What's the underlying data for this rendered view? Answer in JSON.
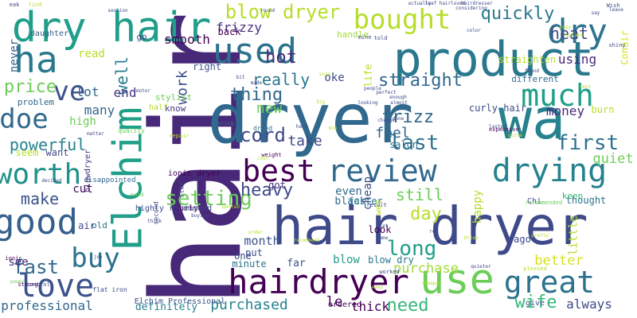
{
  "words": [
    {
      "text": "hair",
      "color": "#482878",
      "vertical": true
    },
    {
      "text": "dryer",
      "color": "#31688e"
    },
    {
      "text": "wa",
      "color": "#26828e"
    },
    {
      "text": "hair dryer",
      "color": "#3e4a89"
    },
    {
      "text": "product",
      "color": "#2a788e"
    },
    {
      "text": "use",
      "color": "#6ccd5a"
    },
    {
      "text": "dry hair",
      "color": "#1f9e89"
    },
    {
      "text": "Elchim",
      "color": "#1f9e89",
      "vertical": true
    },
    {
      "text": "hairdryer",
      "color": "#440154"
    },
    {
      "text": "great",
      "color": "#2c728e"
    },
    {
      "text": "best",
      "color": "#440154"
    },
    {
      "text": "review",
      "color": "#31688e"
    },
    {
      "text": "used",
      "color": "#2c728e"
    },
    {
      "text": "ha",
      "color": "#2a788e"
    },
    {
      "text": "good",
      "color": "#35608d"
    },
    {
      "text": "drying",
      "color": "#26828e"
    },
    {
      "text": "much",
      "color": "#1f9e89"
    },
    {
      "text": "dry",
      "color": "#2c728e"
    },
    {
      "text": "love",
      "color": "#3b528b"
    },
    {
      "text": "bought",
      "color": "#b5de2b"
    },
    {
      "text": "worth",
      "color": "#21918c"
    },
    {
      "text": "buy",
      "color": "#2c728e"
    },
    {
      "text": "doe",
      "color": "#31688e"
    },
    {
      "text": "ve",
      "color": "#3b528b"
    },
    {
      "text": "blow dryer",
      "color": "#b5de2b"
    },
    {
      "text": "first",
      "color": "#2c728e"
    },
    {
      "text": "last",
      "color": "#2c728e"
    },
    {
      "text": "long",
      "color": "#1f9e89"
    },
    {
      "text": "setting",
      "color": "#6ccd5a"
    },
    {
      "text": "cord",
      "color": "#3e4a89"
    },
    {
      "text": "heavy",
      "color": "#3e4a89"
    },
    {
      "text": "make",
      "color": "#3b528b"
    },
    {
      "text": "powerful",
      "color": "#26828e"
    },
    {
      "text": "fast",
      "color": "#31688e"
    },
    {
      "text": "need",
      "color": "#35b779"
    },
    {
      "text": "wife",
      "color": "#35b779"
    },
    {
      "text": "thing",
      "color": "#31688e"
    },
    {
      "text": "price",
      "color": "#6ccd5a"
    },
    {
      "text": "work",
      "color": "#3e4a89",
      "vertical": true
    },
    {
      "text": "well",
      "color": "#2a788e",
      "vertical": true
    },
    {
      "text": "really",
      "color": "#2a788e"
    },
    {
      "text": "hot",
      "color": "#482878"
    },
    {
      "text": "straight",
      "color": "#31688e"
    },
    {
      "text": "quickly",
      "color": "#2a788e"
    },
    {
      "text": "heat",
      "color": "#3e4a89"
    },
    {
      "text": "using",
      "color": "#482878"
    },
    {
      "text": "frizz",
      "color": "#31688e"
    },
    {
      "text": "still",
      "color": "#6ccd5a"
    },
    {
      "text": "day",
      "color": "#b5de2b"
    },
    {
      "text": "take",
      "color": "#3e4a89"
    },
    {
      "text": "feel",
      "color": "#31688e"
    },
    {
      "text": "money",
      "color": "#482878"
    },
    {
      "text": "quiet",
      "color": "#6ccd5a"
    },
    {
      "text": "purchased",
      "color": "#26828e"
    },
    {
      "text": "purchase",
      "color": "#a0da39"
    },
    {
      "text": "professional",
      "color": "#31688e"
    },
    {
      "text": "better",
      "color": "#d8e219"
    },
    {
      "text": "month",
      "color": "#3b528b"
    },
    {
      "text": "smooth",
      "color": "#440154"
    },
    {
      "text": "frizzy",
      "color": "#46327e"
    },
    {
      "text": "never",
      "color": "#35608d",
      "vertical": true
    },
    {
      "text": "new",
      "color": "#6ccd5a"
    },
    {
      "text": "oke",
      "color": "#3e4a89"
    },
    {
      "text": "end",
      "color": "#46327e"
    },
    {
      "text": "lot",
      "color": "#31688e"
    },
    {
      "text": "read",
      "color": "#b5de2b"
    },
    {
      "text": "many",
      "color": "#31688e"
    },
    {
      "text": "high",
      "color": "#6ccd5a"
    },
    {
      "text": "cut",
      "color": "#440154"
    },
    {
      "text": "see",
      "color": "#482878"
    },
    {
      "text": "le",
      "color": "#440154"
    },
    {
      "text": "thick",
      "color": "#440154"
    },
    {
      "text": "always",
      "color": "#3e4a89"
    },
    {
      "text": "definitely",
      "color": "#26828e"
    },
    {
      "text": "happy",
      "color": "#b5de2b",
      "vertical": true
    },
    {
      "text": "curly hair",
      "color": "#3e4a89"
    },
    {
      "text": "ionic dryer",
      "color": "#440154"
    },
    {
      "text": "stylist",
      "color": "#6ccd5a"
    },
    {
      "text": "even",
      "color": "#31688e"
    },
    {
      "text": "black",
      "color": "#31688e"
    },
    {
      "text": "salon",
      "color": "#2c728e"
    },
    {
      "text": "faster",
      "color": "#2a788e"
    },
    {
      "text": "blow",
      "color": "#1f9e89"
    },
    {
      "text": "blow dry",
      "color": "#2a788e"
    },
    {
      "text": "far",
      "color": "#3b528b"
    },
    {
      "text": "different",
      "color": "#31688e"
    },
    {
      "text": "straighten",
      "color": "#b5de2b"
    },
    {
      "text": "handle",
      "color": "#a0da39"
    },
    {
      "text": "right",
      "color": "#3b528b"
    },
    {
      "text": "back",
      "color": "#440154"
    },
    {
      "text": "go",
      "color": "#3e4a89"
    },
    {
      "text": "seem",
      "color": "#b5de2b"
    },
    {
      "text": "want",
      "color": "#3e4a89"
    },
    {
      "text": "problem",
      "color": "#31688e"
    },
    {
      "text": "daughter",
      "color": "#35608d"
    },
    {
      "text": "know",
      "color": "#46327e"
    },
    {
      "text": "half",
      "color": "#b5de2b"
    },
    {
      "text": "air",
      "color": "#3e4a89"
    },
    {
      "text": "old",
      "color": "#2c728e"
    },
    {
      "text": "look",
      "color": "#440154"
    },
    {
      "text": "thought",
      "color": "#2c728e"
    },
    {
      "text": "keep",
      "color": "#35b779"
    },
    {
      "text": "ago",
      "color": "#3e4a89"
    },
    {
      "text": "one",
      "color": "#3e4a89"
    },
    {
      "text": "put",
      "color": "#3e4a89"
    },
    {
      "text": "minute",
      "color": "#2c728e"
    },
    {
      "text": "got",
      "color": "#46327e"
    },
    {
      "text": "curly",
      "color": "#440154"
    },
    {
      "text": "little",
      "color": "#b5de2b",
      "vertical": true
    },
    {
      "text": "cheap",
      "color": "#3e4a89",
      "vertical": true
    },
    {
      "text": "burn",
      "color": "#b5de2b"
    },
    {
      "text": "Chi",
      "color": "#3e4a89"
    },
    {
      "text": "give",
      "color": "#3b528b"
    },
    {
      "text": "ordered",
      "color": "#440154"
    },
    {
      "text": "Conair",
      "color": "#d8e219",
      "vertical": true
    },
    {
      "text": "life",
      "color": "#b5de2b",
      "vertical": true
    },
    {
      "text": "wet",
      "color": "#b5de2b",
      "vertical": true
    },
    {
      "text": "highly recommend",
      "color": "#3e4a89"
    },
    {
      "text": "Elchim Professional",
      "color": "#3b528b"
    },
    {
      "text": "flat iron",
      "color": "#3e4a89"
    },
    {
      "text": "blowdryer",
      "color": "#46327e",
      "vertical": true
    },
    {
      "text": "star",
      "color": "#3e4a89",
      "vertical": true
    },
    {
      "text": "second",
      "color": "#3e4a89",
      "vertical": true
    },
    {
      "text": "disappointed",
      "color": "#31688e"
    },
    {
      "text": "quality",
      "color": "#6ccd5a"
    },
    {
      "text": "repair",
      "color": "#b5de2b"
    },
    {
      "text": "amazing",
      "color": "#2c728e"
    },
    {
      "text": "weight",
      "color": "#440154"
    },
    {
      "text": "dried",
      "color": "#2c728e"
    },
    {
      "text": "result",
      "color": "#3e4a89"
    },
    {
      "text": "said",
      "color": "#6ccd5a"
    },
    {
      "text": "worked",
      "color": "#3b528b"
    },
    {
      "text": "recommended",
      "color": "#6ccd5a"
    },
    {
      "text": "expensive",
      "color": "#440154"
    },
    {
      "text": "power",
      "color": "#6ccd5a"
    },
    {
      "text": "strong",
      "color": "#440154"
    },
    {
      "text": "control",
      "color": "#3e4a89"
    },
    {
      "text": "ionic",
      "color": "#440154"
    },
    {
      "text": "job",
      "color": "#3e4a89"
    },
    {
      "text": "decided",
      "color": "#3e4a89"
    },
    {
      "text": "think",
      "color": "#3e4a89"
    },
    {
      "text": "buying",
      "color": "#3e4a89"
    },
    {
      "text": "wanted",
      "color": "#b5de2b"
    },
    {
      "text": "easy",
      "color": "#b5de2b"
    },
    {
      "text": "cheaper",
      "color": "#b5de2b"
    },
    {
      "text": "quieter",
      "color": "#3e4a89"
    },
    {
      "text": "pleased",
      "color": "#b5de2b"
    },
    {
      "text": "Wish",
      "color": "#3e4a89"
    },
    {
      "text": "shiny",
      "color": "#3e4a89"
    },
    {
      "text": "change",
      "color": "#3e4a89"
    },
    {
      "text": "enough",
      "color": "#3e4a89"
    },
    {
      "text": "perfect",
      "color": "#3e4a89"
    },
    {
      "text": "people",
      "color": "#3e4a89"
    },
    {
      "text": "actually",
      "color": "#3e4a89"
    },
    {
      "text": "leaf hair",
      "color": "#3e4a89"
    },
    {
      "text": "loved",
      "color": "#3e4a89"
    },
    {
      "text": "hairdresser",
      "color": "#3e4a89"
    },
    {
      "text": "find",
      "color": "#b5de2b"
    },
    {
      "text": "eak",
      "color": "#3e4a89"
    },
    {
      "text": "section",
      "color": "#3e4a89"
    },
    {
      "text": "say",
      "color": "#3e4a89"
    },
    {
      "text": "leave",
      "color": "#3e4a89"
    },
    {
      "text": "considering",
      "color": "#3e4a89"
    },
    {
      "text": "color",
      "color": "#3e4a89"
    },
    {
      "text": "told",
      "color": "#3e4a89"
    },
    {
      "text": "mine",
      "color": "#3e4a89"
    },
    {
      "text": "round",
      "color": "#3e4a89"
    },
    {
      "text": "bit",
      "color": "#3e4a89"
    },
    {
      "text": "made",
      "color": "#3e4a89"
    },
    {
      "text": "sure",
      "color": "#b5de2b"
    },
    {
      "text": "motor",
      "color": "#3e4a89"
    },
    {
      "text": "matter",
      "color": "#3e4a89"
    },
    {
      "text": "quite",
      "color": "#b5de2b"
    },
    {
      "text": "found",
      "color": "#3e4a89"
    },
    {
      "text": "lasted",
      "color": "#3e4a89"
    },
    {
      "text": "done",
      "color": "#3e4a89"
    },
    {
      "text": "almost",
      "color": "#3e4a89"
    },
    {
      "text": "looking",
      "color": "#3e4a89"
    },
    {
      "text": "big",
      "color": "#b5de2b"
    },
    {
      "text": "hand",
      "color": "#3e4a89"
    },
    {
      "text": "min",
      "color": "#b5de2b"
    },
    {
      "text": "cost",
      "color": "#b5de2b"
    },
    {
      "text": "order",
      "color": "#b5de2b"
    },
    {
      "text": "recommend",
      "color": "#b5de2b"
    },
    {
      "text": "came",
      "color": "#3e4a89"
    },
    {
      "text": "Let",
      "color": "#3e4a89"
    },
    {
      "text": "re",
      "color": "#3e4a89"
    },
    {
      "text": "Dries",
      "color": "#b5de2b"
    },
    {
      "text": "pretty",
      "color": "#b5de2b"
    },
    {
      "text": "replace",
      "color": "#b5de2b"
    },
    {
      "text": "easy",
      "color": "#b5de2b"
    },
    {
      "text": "sent",
      "color": "#b5de2b"
    }
  ]
}
